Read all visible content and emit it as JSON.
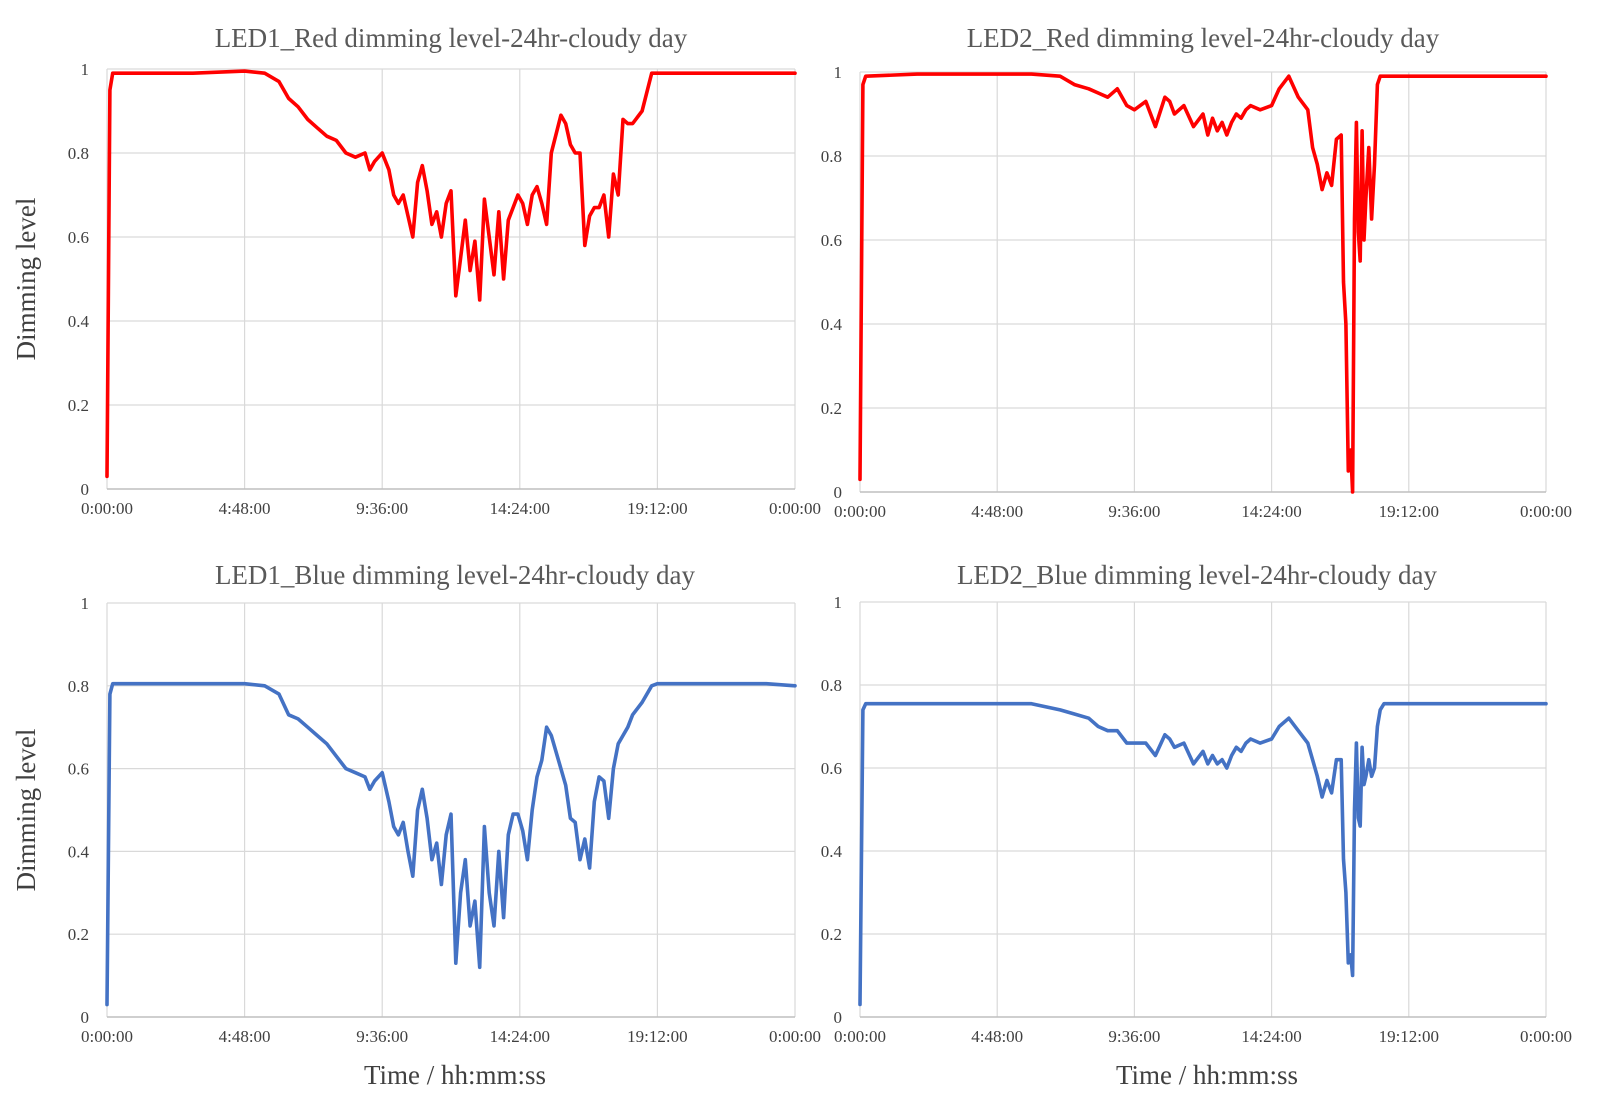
{
  "colors": {
    "red_series": "#ff0000",
    "blue_series": "#4472c4",
    "grid": "#d9d9d9",
    "text": "#595959"
  },
  "chart_data": [
    {
      "type": "line",
      "title": "LED1_Red dimming level-24hr-cloudy day",
      "xlabel": "",
      "ylabel": "Dimming level",
      "xlim": [
        "0:00:00",
        "0:00:00"
      ],
      "ylim": [
        0,
        1
      ],
      "x_ticks": [
        "0:00:00",
        "4:48:00",
        "9:36:00",
        "14:24:00",
        "19:12:00",
        "0:00:00"
      ],
      "y_ticks": [
        "0",
        "0.2",
        "0.4",
        "0.6",
        "0.8",
        "1"
      ],
      "grid": true,
      "color": "#ff0000",
      "series": [
        {
          "x": [
            "0:00:00",
            "0:06:00",
            "0:12:00",
            "1:00:00",
            "3:00:00",
            "4:48:00",
            "5:30:00",
            "6:00:00",
            "6:20:00",
            "6:40:00",
            "7:00:00",
            "7:20:00",
            "7:40:00",
            "8:00:00",
            "8:20:00",
            "8:40:00",
            "9:00:00",
            "9:10:00",
            "9:20:00",
            "9:36:00",
            "9:50:00",
            "10:00:00",
            "10:10:00",
            "10:20:00",
            "10:30:00",
            "10:40:00",
            "10:50:00",
            "11:00:00",
            "11:10:00",
            "11:20:00",
            "11:30:00",
            "11:40:00",
            "11:50:00",
            "12:00:00",
            "12:10:00",
            "12:20:00",
            "12:30:00",
            "12:40:00",
            "12:50:00",
            "13:00:00",
            "13:10:00",
            "13:20:00",
            "13:30:00",
            "13:40:00",
            "13:50:00",
            "14:00:00",
            "14:10:00",
            "14:20:00",
            "14:30:00",
            "14:40:00",
            "14:50:00",
            "15:00:00",
            "15:10:00",
            "15:20:00",
            "15:30:00",
            "15:50:00",
            "16:00:00",
            "16:10:00",
            "16:20:00",
            "16:30:00",
            "16:40:00",
            "16:50:00",
            "17:00:00",
            "17:10:00",
            "17:20:00",
            "17:30:00",
            "17:40:00",
            "17:50:00",
            "18:00:00",
            "18:10:00",
            "18:20:00",
            "18:40:00",
            "19:00:00",
            "19:12:00",
            "20:00:00",
            "22:00:00",
            "23:00:00",
            "24:00:00"
          ],
          "y": [
            0.03,
            0.95,
            0.99,
            0.99,
            0.99,
            0.995,
            0.99,
            0.97,
            0.93,
            0.91,
            0.88,
            0.86,
            0.84,
            0.83,
            0.8,
            0.79,
            0.8,
            0.76,
            0.78,
            0.8,
            0.76,
            0.7,
            0.68,
            0.7,
            0.65,
            0.6,
            0.73,
            0.77,
            0.71,
            0.63,
            0.66,
            0.6,
            0.68,
            0.71,
            0.46,
            0.55,
            0.64,
            0.52,
            0.59,
            0.45,
            0.69,
            0.6,
            0.51,
            0.66,
            0.5,
            0.64,
            0.67,
            0.7,
            0.68,
            0.63,
            0.7,
            0.72,
            0.68,
            0.63,
            0.8,
            0.89,
            0.87,
            0.82,
            0.8,
            0.8,
            0.58,
            0.65,
            0.67,
            0.67,
            0.7,
            0.6,
            0.75,
            0.7,
            0.88,
            0.87,
            0.87,
            0.9,
            0.99,
            0.99,
            0.99,
            0.99,
            0.99,
            0.99
          ]
        }
      ]
    },
    {
      "type": "line",
      "title": "LED2_Red dimming level-24hr-cloudy day",
      "xlabel": "",
      "ylabel": "",
      "xlim": [
        "0:00:00",
        "0:00:00"
      ],
      "ylim": [
        0,
        1
      ],
      "x_ticks": [
        "0:00:00",
        "4:48:00",
        "9:36:00",
        "14:24:00",
        "19:12:00",
        "0:00:00"
      ],
      "y_ticks": [
        "0",
        "0.2",
        "0.4",
        "0.6",
        "0.8",
        "1"
      ],
      "grid": true,
      "color": "#ff0000",
      "series": [
        {
          "x": [
            "0:00:00",
            "0:06:00",
            "0:12:00",
            "2:00:00",
            "4:48:00",
            "6:00:00",
            "7:00:00",
            "7:30:00",
            "8:00:00",
            "8:20:00",
            "8:40:00",
            "9:00:00",
            "9:20:00",
            "9:36:00",
            "10:00:00",
            "10:20:00",
            "10:40:00",
            "10:50:00",
            "11:00:00",
            "11:20:00",
            "11:40:00",
            "12:00:00",
            "12:10:00",
            "12:20:00",
            "12:30:00",
            "12:40:00",
            "12:50:00",
            "13:00:00",
            "13:10:00",
            "13:20:00",
            "13:30:00",
            "13:40:00",
            "14:00:00",
            "14:24:00",
            "14:40:00",
            "15:00:00",
            "15:20:00",
            "15:40:00",
            "15:50:00",
            "16:00:00",
            "16:10:00",
            "16:20:00",
            "16:30:00",
            "16:40:00",
            "16:50:00",
            "16:55:00",
            "17:00:00",
            "17:05:00",
            "17:10:00",
            "17:14:00",
            "17:18:00",
            "17:22:00",
            "17:26:00",
            "17:30:00",
            "17:34:00",
            "17:38:00",
            "17:42:00",
            "17:48:00",
            "17:54:00",
            "18:00:00",
            "18:06:00",
            "18:12:00",
            "18:20:00",
            "18:30:00",
            "19:12:00",
            "22:00:00",
            "24:00:00"
          ],
          "y": [
            0.03,
            0.97,
            0.99,
            0.995,
            0.995,
            0.995,
            0.99,
            0.97,
            0.96,
            0.95,
            0.94,
            0.96,
            0.92,
            0.91,
            0.93,
            0.87,
            0.94,
            0.93,
            0.9,
            0.92,
            0.87,
            0.9,
            0.85,
            0.89,
            0.86,
            0.88,
            0.85,
            0.88,
            0.9,
            0.89,
            0.91,
            0.92,
            0.91,
            0.92,
            0.96,
            0.99,
            0.94,
            0.91,
            0.82,
            0.78,
            0.72,
            0.76,
            0.73,
            0.84,
            0.85,
            0.5,
            0.4,
            0.05,
            0.1,
            0.0,
            0.65,
            0.88,
            0.62,
            0.55,
            0.86,
            0.6,
            0.7,
            0.82,
            0.65,
            0.78,
            0.97,
            0.99,
            0.99,
            0.99,
            0.99,
            0.99,
            0.99
          ]
        }
      ]
    },
    {
      "type": "line",
      "title": "LED1_Blue  dimming level-24hr-cloudy day",
      "xlabel": "Time / hh:mm:ss",
      "ylabel": "Dimming level",
      "xlim": [
        "0:00:00",
        "0:00:00"
      ],
      "ylim": [
        0,
        1
      ],
      "x_ticks": [
        "0:00:00",
        "4:48:00",
        "9:36:00",
        "14:24:00",
        "19:12:00",
        "0:00:00"
      ],
      "y_ticks": [
        "0",
        "0.2",
        "0.4",
        "0.6",
        "0.8",
        "1"
      ],
      "grid": true,
      "color": "#4472c4",
      "series": [
        {
          "x": [
            "0:00:00",
            "0:06:00",
            "0:12:00",
            "1:00:00",
            "3:00:00",
            "4:48:00",
            "5:30:00",
            "6:00:00",
            "6:20:00",
            "6:40:00",
            "7:00:00",
            "7:20:00",
            "7:40:00",
            "8:00:00",
            "8:20:00",
            "8:40:00",
            "9:00:00",
            "9:10:00",
            "9:20:00",
            "9:36:00",
            "9:50:00",
            "10:00:00",
            "10:10:00",
            "10:20:00",
            "10:30:00",
            "10:40:00",
            "10:50:00",
            "11:00:00",
            "11:10:00",
            "11:20:00",
            "11:30:00",
            "11:40:00",
            "11:50:00",
            "12:00:00",
            "12:10:00",
            "12:20:00",
            "12:30:00",
            "12:40:00",
            "12:50:00",
            "13:00:00",
            "13:10:00",
            "13:20:00",
            "13:30:00",
            "13:40:00",
            "13:50:00",
            "14:00:00",
            "14:10:00",
            "14:20:00",
            "14:30:00",
            "14:40:00",
            "14:50:00",
            "15:00:00",
            "15:10:00",
            "15:20:00",
            "15:30:00",
            "15:50:00",
            "16:00:00",
            "16:10:00",
            "16:20:00",
            "16:30:00",
            "16:40:00",
            "16:50:00",
            "17:00:00",
            "17:10:00",
            "17:20:00",
            "17:30:00",
            "17:40:00",
            "17:50:00",
            "18:00:00",
            "18:10:00",
            "18:20:00",
            "18:40:00",
            "19:00:00",
            "19:12:00",
            "20:00:00",
            "22:00:00",
            "23:00:00",
            "24:00:00"
          ],
          "y": [
            0.03,
            0.78,
            0.805,
            0.805,
            0.805,
            0.805,
            0.8,
            0.78,
            0.73,
            0.72,
            0.7,
            0.68,
            0.66,
            0.63,
            0.6,
            0.59,
            0.58,
            0.55,
            0.57,
            0.59,
            0.52,
            0.46,
            0.44,
            0.47,
            0.4,
            0.34,
            0.5,
            0.55,
            0.48,
            0.38,
            0.42,
            0.32,
            0.44,
            0.49,
            0.13,
            0.3,
            0.38,
            0.22,
            0.28,
            0.12,
            0.46,
            0.3,
            0.22,
            0.4,
            0.24,
            0.44,
            0.49,
            0.49,
            0.45,
            0.38,
            0.5,
            0.58,
            0.62,
            0.7,
            0.68,
            0.6,
            0.56,
            0.48,
            0.47,
            0.38,
            0.43,
            0.36,
            0.52,
            0.58,
            0.57,
            0.48,
            0.6,
            0.66,
            0.68,
            0.7,
            0.73,
            0.76,
            0.8,
            0.805,
            0.805,
            0.805,
            0.805,
            0.8
          ]
        }
      ]
    },
    {
      "type": "line",
      "title": "LED2_Blue  dimming level-24hr-cloudy day",
      "xlabel": "Time / hh:mm:ss",
      "ylabel": "",
      "xlim": [
        "0:00:00",
        "0:00:00"
      ],
      "ylim": [
        0,
        1
      ],
      "x_ticks": [
        "0:00:00",
        "4:48:00",
        "9:36:00",
        "14:24:00",
        "19:12:00",
        "0:00:00"
      ],
      "y_ticks": [
        "0",
        "0.2",
        "0.4",
        "0.6",
        "0.8",
        "1"
      ],
      "grid": true,
      "color": "#4472c4",
      "series": [
        {
          "x": [
            "0:00:00",
            "0:06:00",
            "0:12:00",
            "2:00:00",
            "4:48:00",
            "6:00:00",
            "7:00:00",
            "7:30:00",
            "8:00:00",
            "8:20:00",
            "8:40:00",
            "9:00:00",
            "9:20:00",
            "9:36:00",
            "10:00:00",
            "10:20:00",
            "10:40:00",
            "10:50:00",
            "11:00:00",
            "11:20:00",
            "11:40:00",
            "12:00:00",
            "12:10:00",
            "12:20:00",
            "12:30:00",
            "12:40:00",
            "12:50:00",
            "13:00:00",
            "13:10:00",
            "13:20:00",
            "13:30:00",
            "13:40:00",
            "14:00:00",
            "14:24:00",
            "14:40:00",
            "15:00:00",
            "15:20:00",
            "15:40:00",
            "15:50:00",
            "16:00:00",
            "16:10:00",
            "16:20:00",
            "16:30:00",
            "16:40:00",
            "16:50:00",
            "16:55:00",
            "17:00:00",
            "17:05:00",
            "17:10:00",
            "17:14:00",
            "17:18:00",
            "17:22:00",
            "17:26:00",
            "17:30:00",
            "17:34:00",
            "17:38:00",
            "17:42:00",
            "17:48:00",
            "17:54:00",
            "18:00:00",
            "18:06:00",
            "18:12:00",
            "18:20:00",
            "18:30:00",
            "19:12:00",
            "22:00:00",
            "24:00:00"
          ],
          "y": [
            0.03,
            0.74,
            0.755,
            0.755,
            0.755,
            0.755,
            0.74,
            0.73,
            0.72,
            0.7,
            0.69,
            0.69,
            0.66,
            0.66,
            0.66,
            0.63,
            0.68,
            0.67,
            0.65,
            0.66,
            0.61,
            0.64,
            0.61,
            0.63,
            0.61,
            0.62,
            0.6,
            0.63,
            0.65,
            0.64,
            0.66,
            0.67,
            0.66,
            0.67,
            0.7,
            0.72,
            0.69,
            0.66,
            0.62,
            0.58,
            0.53,
            0.57,
            0.54,
            0.62,
            0.62,
            0.38,
            0.3,
            0.13,
            0.15,
            0.1,
            0.5,
            0.66,
            0.48,
            0.46,
            0.65,
            0.56,
            0.58,
            0.62,
            0.58,
            0.6,
            0.7,
            0.74,
            0.755,
            0.755,
            0.755,
            0.755,
            0.755
          ]
        }
      ]
    }
  ]
}
